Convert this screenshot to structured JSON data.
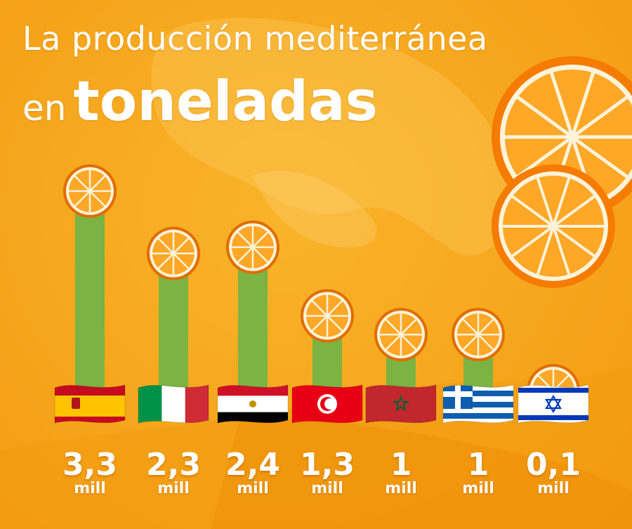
{
  "title": {
    "line1": "La producción mediterránea",
    "line2_small": "en",
    "line2_big": "toneladas"
  },
  "colors": {
    "background": "#f6a61c",
    "bar": "#7cb342",
    "text": "#ffffff",
    "orange_rind": "#f57c00",
    "orange_pulp": "#ffa726"
  },
  "chart_data": {
    "type": "bar",
    "categories": [
      "España",
      "Italia",
      "Egipto",
      "Túnez",
      "Marruecos",
      "Grecia",
      "Israel"
    ],
    "values": [
      3.3,
      2.3,
      2.4,
      1.3,
      1,
      1,
      0.1
    ],
    "labels": [
      "3,3",
      "2,3",
      "2,4",
      "1,3",
      "1",
      "1",
      "0,1"
    ],
    "unit": "mill",
    "title": "La producción mediterránea en toneladas",
    "xlabel": "",
    "ylabel": "",
    "ylim": [
      0,
      3.3
    ],
    "grid": false,
    "legend": "none"
  }
}
